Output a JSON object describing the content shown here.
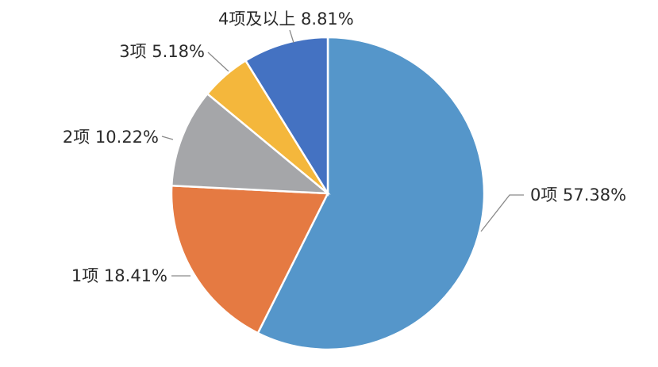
{
  "chart_data": {
    "type": "pie",
    "categories": [
      "0项",
      "1项",
      "2项",
      "3项",
      "4项及以上"
    ],
    "values": [
      57.38,
      18.41,
      10.22,
      5.18,
      8.81
    ],
    "labels": [
      "0项 57.38%",
      "1项 18.41%",
      "2项 10.22%",
      "3项 5.18%",
      "4项及以上 8.81%"
    ],
    "colors": [
      "#5596CA",
      "#E57A42",
      "#A5A6A9",
      "#F4B73C",
      "#4472C2"
    ],
    "start": "12 o'clock",
    "direction": "clockwise",
    "legend": "none"
  }
}
